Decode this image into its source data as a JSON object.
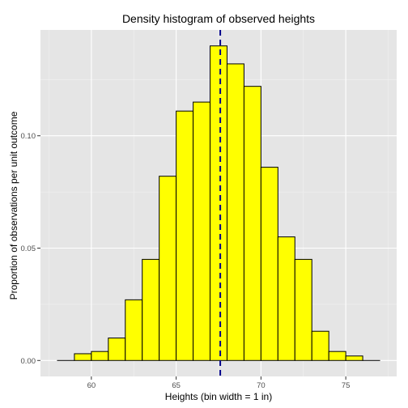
{
  "chart_data": {
    "type": "bar",
    "title": "Density histogram of observed heights",
    "xlabel": "Heights (bin width = 1 in)",
    "ylabel": "Proportion of observations per unit outcome",
    "bins": [
      {
        "x0": 58,
        "x1": 59,
        "value": 0.0
      },
      {
        "x0": 59,
        "x1": 60,
        "value": 0.003
      },
      {
        "x0": 60,
        "x1": 61,
        "value": 0.004
      },
      {
        "x0": 61,
        "x1": 62,
        "value": 0.01
      },
      {
        "x0": 62,
        "x1": 63,
        "value": 0.027
      },
      {
        "x0": 63,
        "x1": 64,
        "value": 0.045
      },
      {
        "x0": 64,
        "x1": 65,
        "value": 0.082
      },
      {
        "x0": 65,
        "x1": 66,
        "value": 0.111
      },
      {
        "x0": 66,
        "x1": 67,
        "value": 0.115
      },
      {
        "x0": 67,
        "x1": 68,
        "value": 0.14
      },
      {
        "x0": 68,
        "x1": 69,
        "value": 0.132
      },
      {
        "x0": 69,
        "x1": 70,
        "value": 0.122
      },
      {
        "x0": 70,
        "x1": 71,
        "value": 0.086
      },
      {
        "x0": 71,
        "x1": 72,
        "value": 0.055
      },
      {
        "x0": 72,
        "x1": 73,
        "value": 0.045
      },
      {
        "x0": 73,
        "x1": 74,
        "value": 0.013
      },
      {
        "x0": 74,
        "x1": 75,
        "value": 0.004
      },
      {
        "x0": 75,
        "x1": 76,
        "value": 0.002
      },
      {
        "x0": 76,
        "x1": 77,
        "value": 0.0
      }
    ],
    "mean_line": {
      "x": 67.6,
      "color": "#00008b",
      "style": "dashed"
    },
    "xlim": [
      57.0,
      78.0
    ],
    "ylim": [
      -0.0071,
      0.1471
    ],
    "x_ticks": [
      60,
      65,
      70,
      75
    ],
    "x_tick_labels": [
      "60",
      "65",
      "70",
      "75"
    ],
    "y_ticks": [
      0.0,
      0.05,
      0.1
    ],
    "y_tick_labels": [
      "0.00",
      "0.05",
      "0.10"
    ],
    "grid": true,
    "colors": {
      "bar_fill": "#ffff00",
      "bar_stroke": "#000000",
      "panel_bg": "#e5e5e5",
      "grid_major": "#ffffff",
      "grid_minor": "#f2f2f2"
    }
  }
}
